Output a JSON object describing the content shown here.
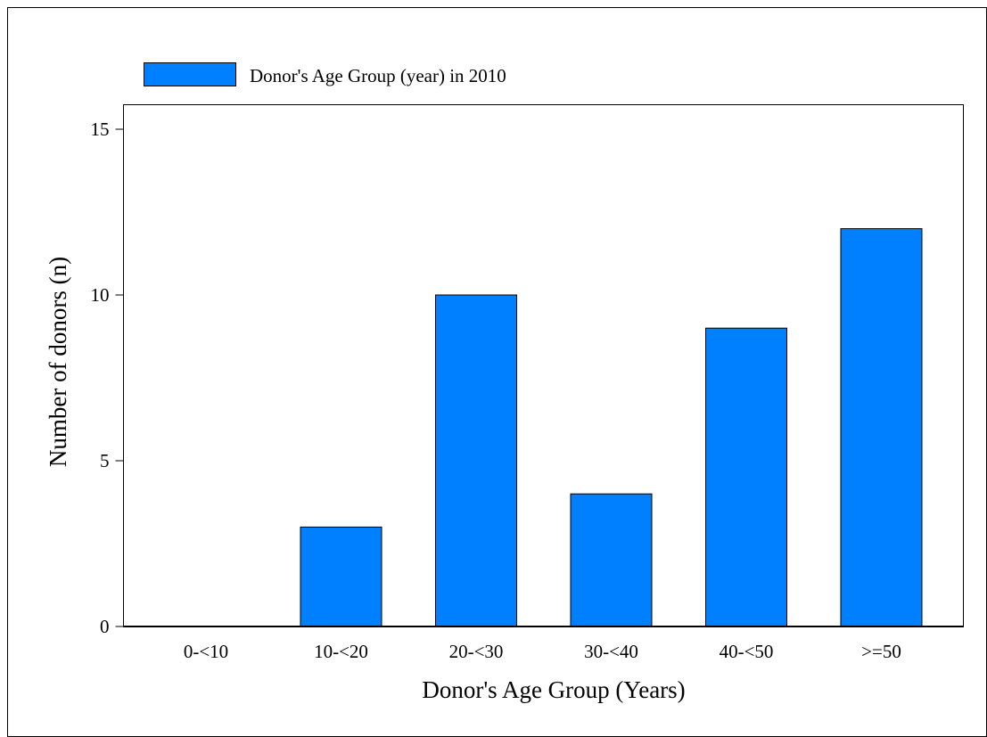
{
  "chart_data": {
    "type": "bar",
    "title": "",
    "xlabel": "Donor's Age Group (Years)",
    "ylabel": "Number of donors (n)",
    "categories": [
      "0-<10",
      "10-<20",
      "20-<30",
      "30-<40",
      "40-<50",
      ">=50"
    ],
    "series": [
      {
        "name": "Donor's Age Group (year) in 2010",
        "values": [
          0,
          3,
          10,
          4,
          9,
          12
        ]
      }
    ],
    "ylim": [
      0,
      16
    ],
    "yticks": [
      0,
      5,
      10,
      15
    ],
    "ytick_labels": [
      "0",
      "5",
      "10",
      "15"
    ],
    "grid": false,
    "legend_position": "top-left",
    "colors": {
      "bar": "#0080ff",
      "outline": "#000000",
      "background": "#ffffff"
    }
  }
}
